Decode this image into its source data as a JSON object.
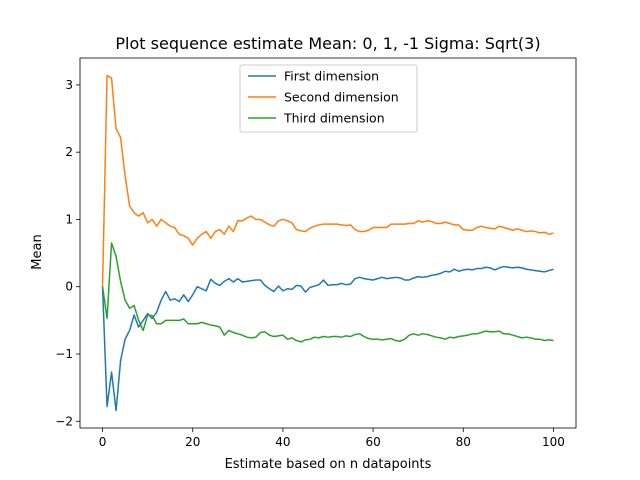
{
  "chart_data": {
    "type": "line",
    "title": "Plot sequence estimate Mean: 0, 1, -1 Sigma: Sqrt(3)",
    "xlabel": "Estimate based on n datapoints",
    "ylabel": "Mean",
    "xlim": [
      -5,
      105
    ],
    "ylim": [
      -2.1,
      3.4
    ],
    "xticks": [
      0,
      20,
      40,
      60,
      80,
      100
    ],
    "yticks": [
      -2,
      -1,
      0,
      1,
      2,
      3
    ],
    "grid": false,
    "legend_position": "upper center",
    "x": [
      0,
      1,
      2,
      3,
      4,
      5,
      6,
      7,
      8,
      9,
      10,
      11,
      12,
      13,
      14,
      15,
      16,
      17,
      18,
      19,
      20,
      21,
      22,
      23,
      24,
      25,
      26,
      27,
      28,
      29,
      30,
      31,
      32,
      33,
      34,
      35,
      36,
      37,
      38,
      39,
      40,
      41,
      42,
      43,
      44,
      45,
      46,
      47,
      48,
      49,
      50,
      51,
      52,
      53,
      54,
      55,
      56,
      57,
      58,
      59,
      60,
      61,
      62,
      63,
      64,
      65,
      66,
      67,
      68,
      69,
      70,
      71,
      72,
      73,
      74,
      75,
      76,
      77,
      78,
      79,
      80,
      81,
      82,
      83,
      84,
      85,
      86,
      87,
      88,
      89,
      90,
      91,
      92,
      93,
      94,
      95,
      96,
      97,
      98,
      99,
      100
    ],
    "series": [
      {
        "name": "First dimension",
        "color": "#1f77b4",
        "values": [
          0,
          -1.78,
          -1.27,
          -1.84,
          -1.1,
          -0.78,
          -0.65,
          -0.42,
          -0.6,
          -0.5,
          -0.4,
          -0.47,
          -0.38,
          -0.2,
          -0.07,
          -0.2,
          -0.18,
          -0.22,
          -0.12,
          -0.22,
          -0.12,
          0,
          -0.03,
          -0.06,
          0.11,
          0.05,
          0.02,
          0.08,
          0.12,
          0.07,
          0.12,
          0.07,
          0.08,
          0.09,
          0.1,
          0.1,
          0.02,
          -0.03,
          -0.07,
          0.01,
          -0.06,
          -0.03,
          -0.04,
          0.02,
          0.01,
          -0.08,
          -0.01,
          0.01,
          0.03,
          0.1,
          0.02,
          0.03,
          0.03,
          0.05,
          0.03,
          0.04,
          0.12,
          0.14,
          0.12,
          0.11,
          0.1,
          0.12,
          0.14,
          0.12,
          0.13,
          0.14,
          0.13,
          0.1,
          0.1,
          0.13,
          0.15,
          0.14,
          0.15,
          0.17,
          0.18,
          0.2,
          0.23,
          0.22,
          0.26,
          0.23,
          0.25,
          0.26,
          0.25,
          0.27,
          0.27,
          0.29,
          0.28,
          0.25,
          0.28,
          0.3,
          0.29,
          0.28,
          0.29,
          0.28,
          0.26,
          0.25,
          0.24,
          0.23,
          0.22,
          0.24,
          0.26
        ]
      },
      {
        "name": "Second dimension",
        "color": "#ff7f0e",
        "values": [
          0,
          3.14,
          3.1,
          2.35,
          2.22,
          1.65,
          1.2,
          1.1,
          1.05,
          1.1,
          0.95,
          1.0,
          0.9,
          1.0,
          0.95,
          0.9,
          0.88,
          0.78,
          0.76,
          0.72,
          0.62,
          0.72,
          0.78,
          0.82,
          0.72,
          0.82,
          0.85,
          0.78,
          0.9,
          0.82,
          0.98,
          0.98,
          1.02,
          1.05,
          1.0,
          1.0,
          0.96,
          0.92,
          0.9,
          0.98,
          1.0,
          0.98,
          0.95,
          0.85,
          0.83,
          0.82,
          0.87,
          0.9,
          0.92,
          0.93,
          0.93,
          0.93,
          0.93,
          0.92,
          0.91,
          0.92,
          0.85,
          0.82,
          0.82,
          0.84,
          0.88,
          0.88,
          0.88,
          0.88,
          0.93,
          0.93,
          0.93,
          0.93,
          0.94,
          0.94,
          0.98,
          0.96,
          0.98,
          0.97,
          0.94,
          0.94,
          0.96,
          0.94,
          0.92,
          0.92,
          0.85,
          0.84,
          0.84,
          0.88,
          0.9,
          0.88,
          0.87,
          0.86,
          0.9,
          0.88,
          0.86,
          0.84,
          0.86,
          0.84,
          0.82,
          0.83,
          0.82,
          0.8,
          0.81,
          0.78,
          0.8
        ]
      },
      {
        "name": "Third dimension",
        "color": "#2ca02c",
        "values": [
          0,
          -0.47,
          0.65,
          0.45,
          0.08,
          -0.2,
          -0.32,
          -0.28,
          -0.5,
          -0.65,
          -0.42,
          -0.43,
          -0.55,
          -0.55,
          -0.5,
          -0.5,
          -0.5,
          -0.5,
          -0.48,
          -0.55,
          -0.55,
          -0.55,
          -0.53,
          -0.55,
          -0.57,
          -0.58,
          -0.6,
          -0.72,
          -0.65,
          -0.68,
          -0.7,
          -0.72,
          -0.75,
          -0.76,
          -0.75,
          -0.68,
          -0.67,
          -0.72,
          -0.74,
          -0.73,
          -0.72,
          -0.78,
          -0.76,
          -0.8,
          -0.82,
          -0.79,
          -0.78,
          -0.75,
          -0.76,
          -0.74,
          -0.75,
          -0.74,
          -0.74,
          -0.75,
          -0.73,
          -0.74,
          -0.71,
          -0.7,
          -0.74,
          -0.77,
          -0.78,
          -0.78,
          -0.79,
          -0.78,
          -0.77,
          -0.8,
          -0.81,
          -0.78,
          -0.72,
          -0.7,
          -0.72,
          -0.7,
          -0.71,
          -0.73,
          -0.75,
          -0.76,
          -0.78,
          -0.75,
          -0.76,
          -0.74,
          -0.73,
          -0.72,
          -0.7,
          -0.7,
          -0.68,
          -0.66,
          -0.67,
          -0.67,
          -0.66,
          -0.7,
          -0.7,
          -0.72,
          -0.74,
          -0.76,
          -0.75,
          -0.76,
          -0.78,
          -0.78,
          -0.8,
          -0.79,
          -0.8
        ]
      }
    ]
  }
}
